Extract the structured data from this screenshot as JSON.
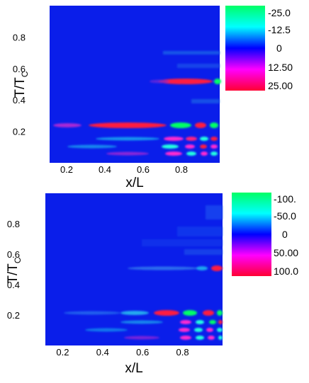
{
  "chart_data": [
    {
      "type": "heatmap",
      "xlabel": "x/L",
      "ylabel_main": "T/T",
      "ylabel_sub": "C",
      "xlim": [
        0,
        1
      ],
      "ylim": [
        0,
        1
      ],
      "xticks": [
        "0.2",
        "0.4",
        "0.6",
        "0.8"
      ],
      "yticks": [
        "0.2",
        "0.4",
        "0.6",
        "0.8"
      ],
      "xtick_values": [
        0.2,
        0.4,
        0.6,
        0.8
      ],
      "ytick_values": [
        0.2,
        0.4,
        0.6,
        0.8
      ],
      "colorbar_labels": [
        "-25.0",
        "-12.5",
        "0",
        "12.50",
        "25.00"
      ],
      "colorbar_range": [
        -25,
        25
      ],
      "colors": [
        "#00ff66",
        "#00ffff",
        "#0000ff",
        "#ff00ff",
        "#ff0033"
      ],
      "background_color": "#0a1eea"
    },
    {
      "type": "heatmap",
      "xlabel": "x/L",
      "ylabel_main": "T/T",
      "ylabel_sub": "C",
      "xlim": [
        0,
        1
      ],
      "ylim": [
        0,
        1
      ],
      "xticks": [
        "0.2",
        "0.4",
        "0.6",
        "0.8"
      ],
      "yticks": [
        "0.2",
        "0.4",
        "0.6",
        "0.8"
      ],
      "xtick_values": [
        0.2,
        0.4,
        0.6,
        0.8
      ],
      "ytick_values": [
        0.2,
        0.4,
        0.6,
        0.8
      ],
      "colorbar_labels": [
        "-100.",
        "-50.0",
        "0",
        "50.00",
        "100.0"
      ],
      "colorbar_range": [
        -100,
        100
      ],
      "colors": [
        "#00ff66",
        "#00ffff",
        "#0000ff",
        "#ff00ff",
        "#ff0033"
      ],
      "background_color": "#0a1eea"
    }
  ]
}
